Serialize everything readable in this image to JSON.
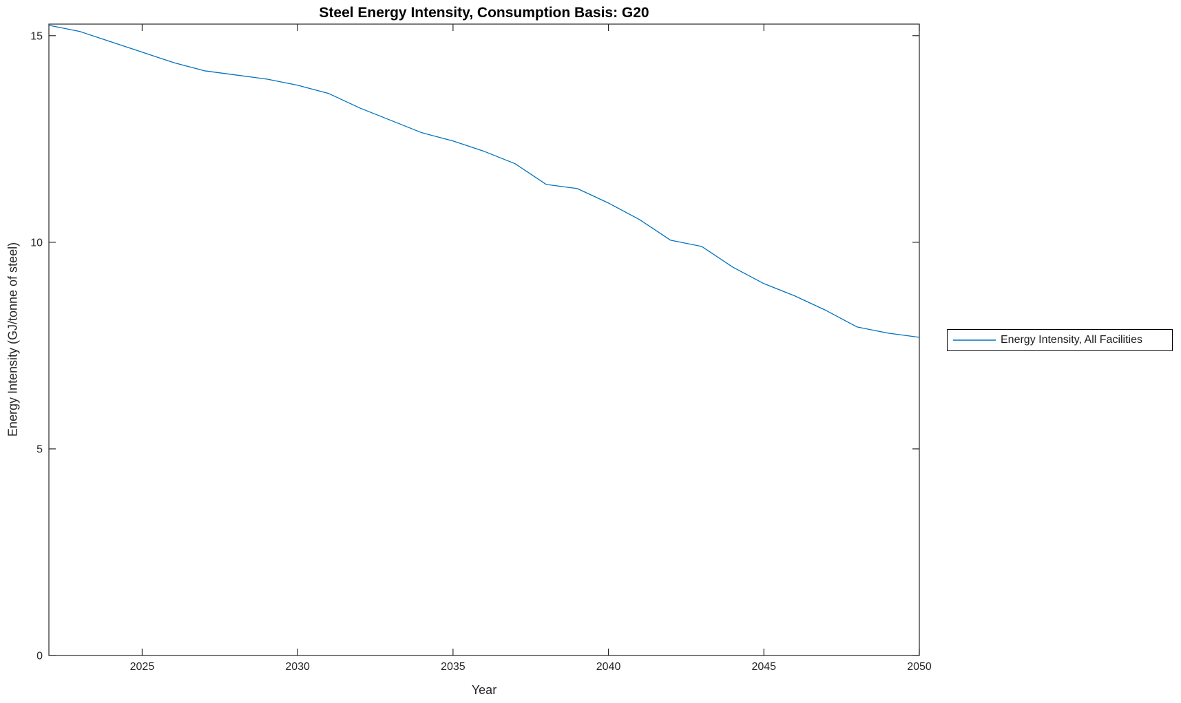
{
  "colors": {
    "line": "#0072BD",
    "axis": "#262626",
    "tick_label": "#262626",
    "title": "#000000",
    "legend_border": "#000000",
    "background": "#ffffff"
  },
  "legend": {
    "label": "Energy Intensity, All Facilities"
  },
  "chart_data": {
    "type": "line",
    "title": "Steel Energy Intensity, Consumption Basis: G20",
    "xlabel": "Year",
    "ylabel": "Energy Intensity (GJ/tonne of steel)",
    "xlim": [
      2022,
      2050
    ],
    "ylim": [
      0,
      15.28
    ],
    "xticks": [
      2025,
      2030,
      2035,
      2040,
      2045,
      2050
    ],
    "yticks": [
      0,
      5,
      10,
      15
    ],
    "grid": false,
    "box": true,
    "legend_position": "outside-right",
    "series": [
      {
        "name": "Energy Intensity, All Facilities",
        "color": "#0072BD",
        "x": [
          2022,
          2023,
          2024,
          2025,
          2026,
          2027,
          2028,
          2029,
          2030,
          2031,
          2032,
          2033,
          2034,
          2035,
          2036,
          2037,
          2038,
          2039,
          2040,
          2041,
          2042,
          2043,
          2044,
          2045,
          2046,
          2047,
          2048,
          2049,
          2050
        ],
        "values": [
          15.25,
          15.1,
          14.85,
          14.6,
          14.35,
          14.15,
          14.05,
          13.95,
          13.8,
          13.6,
          13.25,
          12.95,
          12.65,
          12.45,
          12.2,
          11.9,
          11.4,
          11.3,
          10.95,
          10.55,
          10.05,
          9.9,
          9.4,
          9.0,
          8.7,
          8.35,
          7.95,
          7.8,
          7.7
        ]
      }
    ]
  }
}
